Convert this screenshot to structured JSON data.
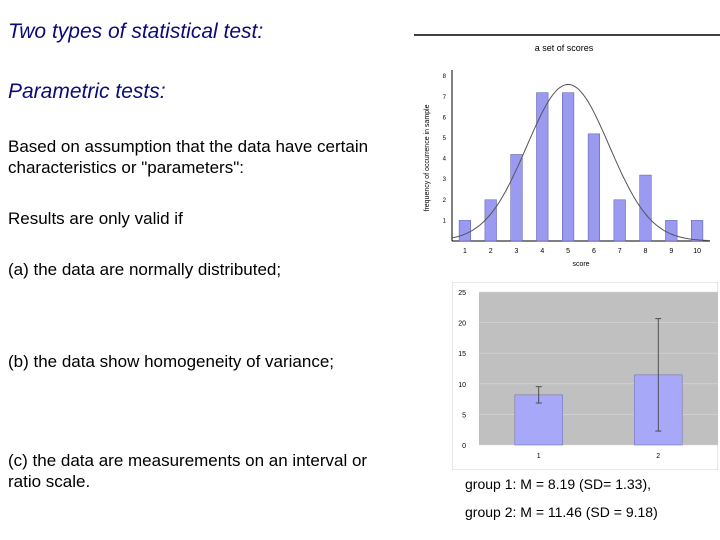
{
  "slide": {
    "title": "Two types of statistical test:",
    "subtitle": "Parametric tests:",
    "assumption": "Based on assumption that the data have certain characteristics or \"parameters\":",
    "validity": "Results are only valid if",
    "condition_a": "(a) the data are normally distributed;",
    "condition_b": "(b) the data show homogeneity of variance;",
    "condition_c": "(c) the data are measurements on an interval or ratio scale.",
    "group1": "group 1: M = 8.19 (SD= 1.33),",
    "group2": "group 2: M = 11.46 (SD = 9.18)"
  },
  "chart_data": [
    {
      "type": "bar",
      "title": "a set of scores",
      "xlabel": "score",
      "ylabel": "frequency of occurrence in sample",
      "categories": [
        "1",
        "2",
        "3",
        "4",
        "5",
        "6",
        "7",
        "8",
        "9",
        "10"
      ],
      "values": [
        1,
        2,
        4.2,
        7.2,
        7.2,
        5.2,
        2,
        3.2,
        1,
        1
      ],
      "ylim": [
        0,
        8.3
      ],
      "yticks": [
        "1",
        "2",
        "3",
        "4",
        "5",
        "6",
        "7",
        "8"
      ],
      "curve": "normal",
      "bar_color": "#9a9af0",
      "curve_color": "#555555"
    },
    {
      "type": "bar",
      "categories": [
        "1",
        "2"
      ],
      "values": [
        8.19,
        11.46
      ],
      "error": [
        1.33,
        9.18
      ],
      "ylim": [
        0,
        25
      ],
      "yticks": [
        "0",
        "5",
        "10",
        "15",
        "20",
        "25"
      ],
      "grid": true,
      "plot_background": "#c0c0c0",
      "bar_color": "#a8a8f8"
    }
  ]
}
